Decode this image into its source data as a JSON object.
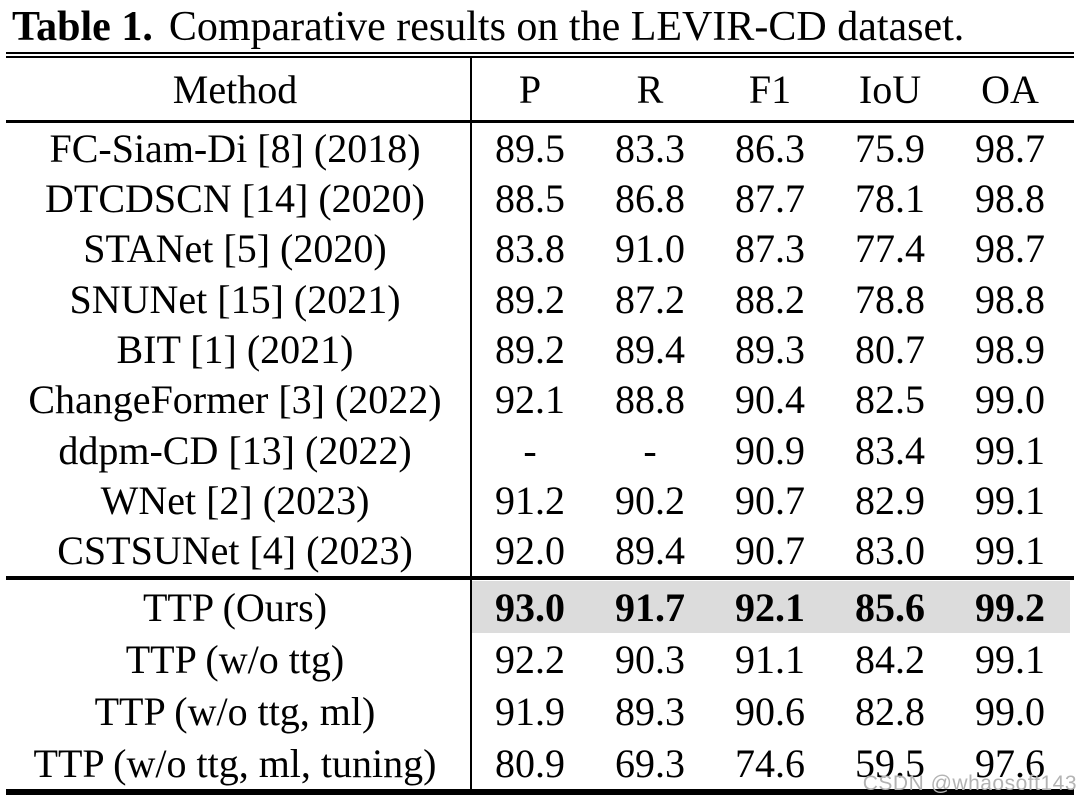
{
  "caption": {
    "label": "Table 1.",
    "text": "Comparative results on the LEVIR-CD dataset."
  },
  "table": {
    "header": {
      "method": "Method",
      "metrics": [
        "P",
        "R",
        "F1",
        "IoU",
        "OA"
      ]
    },
    "main_rows": [
      {
        "method": "FC-Siam-Di [8] (2018)",
        "values": [
          "89.5",
          "83.3",
          "86.3",
          "75.9",
          "98.7"
        ]
      },
      {
        "method": "DTCDSCN [14] (2020)",
        "values": [
          "88.5",
          "86.8",
          "87.7",
          "78.1",
          "98.8"
        ]
      },
      {
        "method": "STANet [5] (2020)",
        "values": [
          "83.8",
          "91.0",
          "87.3",
          "77.4",
          "98.7"
        ]
      },
      {
        "method": "SNUNet [15] (2021)",
        "values": [
          "89.2",
          "87.2",
          "88.2",
          "78.8",
          "98.8"
        ]
      },
      {
        "method": "BIT [1] (2021)",
        "values": [
          "89.2",
          "89.4",
          "89.3",
          "80.7",
          "98.9"
        ]
      },
      {
        "method": "ChangeFormer [3] (2022)",
        "values": [
          "92.1",
          "88.8",
          "90.4",
          "82.5",
          "99.0"
        ]
      },
      {
        "method": "ddpm-CD [13] (2022)",
        "values": [
          "-",
          "-",
          "90.9",
          "83.4",
          "99.1"
        ]
      },
      {
        "method": "WNet [2] (2023)",
        "values": [
          "91.2",
          "90.2",
          "90.7",
          "82.9",
          "99.1"
        ]
      },
      {
        "method": "CSTSUNet [4] (2023)",
        "values": [
          "92.0",
          "89.4",
          "90.7",
          "83.0",
          "99.1"
        ]
      }
    ],
    "ablation_rows": [
      {
        "method": "TTP (Ours)",
        "values": [
          "93.0",
          "91.7",
          "92.1",
          "85.6",
          "99.2"
        ],
        "bold": true,
        "highlight": true
      },
      {
        "method": "TTP (w/o ttg)",
        "values": [
          "92.2",
          "90.3",
          "91.1",
          "84.2",
          "99.1"
        ]
      },
      {
        "method": "TTP (w/o ttg, ml)",
        "values": [
          "91.9",
          "89.3",
          "90.6",
          "82.8",
          "99.0"
        ]
      },
      {
        "method": "TTP (w/o ttg, ml, tuning)",
        "values": [
          "80.9",
          "69.3",
          "74.6",
          "59.5",
          "97.6"
        ]
      }
    ]
  },
  "watermark": {
    "text": "CSDN @whaosoft143"
  },
  "colors": {
    "text": "#000000",
    "rule": "#000000",
    "highlight_row": "#dcdcdc",
    "watermark": "#b3b3b3",
    "background": "#ffffff"
  }
}
